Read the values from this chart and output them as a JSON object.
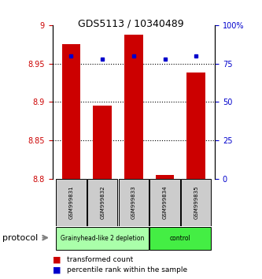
{
  "title": "GDS5113 / 10340489",
  "samples": [
    "GSM999831",
    "GSM999832",
    "GSM999833",
    "GSM999834",
    "GSM999835"
  ],
  "red_values": [
    8.975,
    8.895,
    8.988,
    8.805,
    8.938
  ],
  "blue_values": [
    80,
    78,
    80,
    78,
    80
  ],
  "ylim_left": [
    8.8,
    9.0
  ],
  "ylim_right": [
    0,
    100
  ],
  "yticks_left": [
    8.8,
    8.85,
    8.9,
    8.95,
    9.0
  ],
  "yticks_right": [
    0,
    25,
    50,
    75,
    100
  ],
  "ytick_labels_left": [
    "8.8",
    "8.85",
    "8.9",
    "8.95",
    "9"
  ],
  "ytick_labels_right": [
    "0",
    "25",
    "50",
    "75",
    "100%"
  ],
  "groups": [
    {
      "label": "Grainyhead-like 2 depletion",
      "indices": [
        0,
        1,
        2
      ],
      "color": "#aaffaa"
    },
    {
      "label": "control",
      "indices": [
        3,
        4
      ],
      "color": "#44ee44"
    }
  ],
  "group_label": "protocol",
  "bar_color_red": "#cc0000",
  "bar_color_blue": "#0000cc",
  "bar_bottom": 8.8,
  "bar_width": 0.6,
  "legend_red": "transformed count",
  "legend_blue": "percentile rank within the sample",
  "background_color": "#ffffff",
  "plot_bg": "#ffffff",
  "tick_label_color_left": "#cc0000",
  "tick_label_color_right": "#0000cc",
  "sample_box_color": "#cccccc",
  "title_fontsize": 9,
  "tick_fontsize": 7,
  "sample_fontsize": 5,
  "group_fontsize": 7,
  "legend_fontsize": 6.5,
  "protocol_fontsize": 8
}
